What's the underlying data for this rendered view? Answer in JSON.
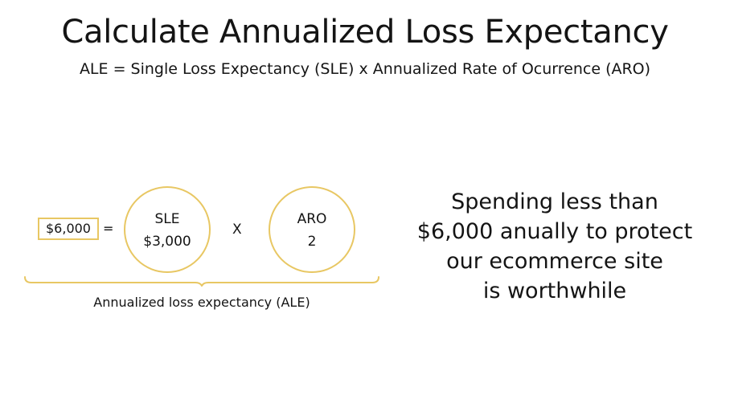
{
  "title": "Calculate Annualized Loss Expectancy",
  "formula": "ALE = Single Loss Expectancy (SLE) x Annualized Rate of Ocurrence (ARO)",
  "equation": {
    "result": "$6,000",
    "equals": "=",
    "operator": "X",
    "sle": {
      "label": "SLE",
      "value": "$3,000"
    },
    "aro": {
      "label": "ARO",
      "value": "2"
    },
    "brace_label": "Annualized loss expectancy (ALE)"
  },
  "message": {
    "lines": [
      "Spending less than",
      "$6,000 anually to protect",
      "our ecommerce site",
      "is worthwhile"
    ]
  },
  "colors": {
    "accent": "#e8c763",
    "text": "#141414",
    "background": "#ffffff"
  }
}
